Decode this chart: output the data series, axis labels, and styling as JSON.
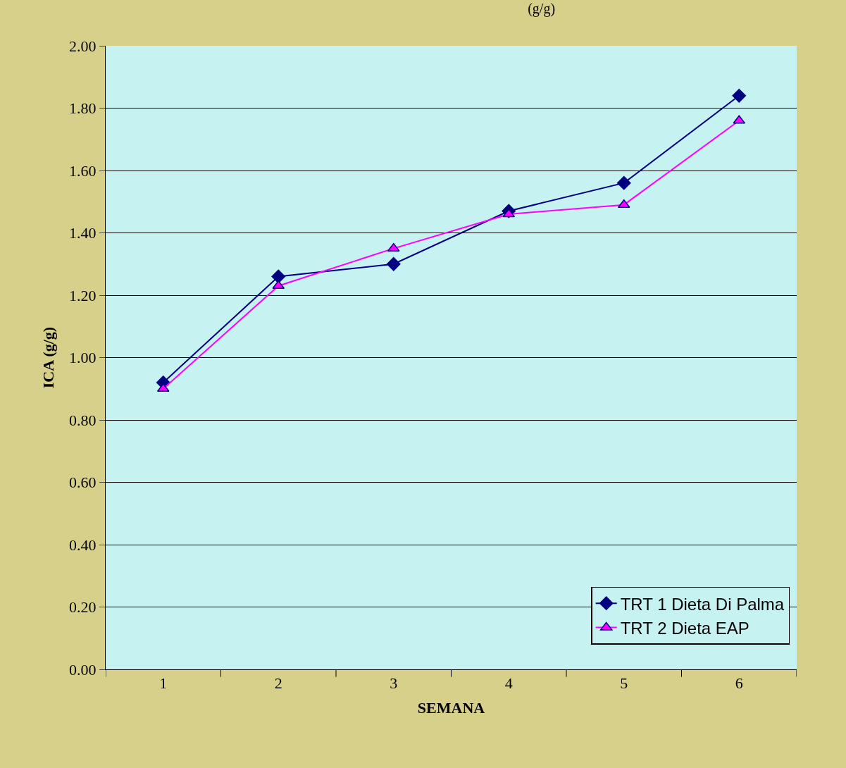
{
  "chart_data": {
    "type": "line",
    "title": "(g/g)",
    "xlabel": "SEMANA",
    "ylabel": "ICA (g/g)",
    "categories": [
      "1",
      "2",
      "3",
      "4",
      "5",
      "6"
    ],
    "series": [
      {
        "name": "TRT 1 Dieta Di Palma",
        "color": "#000080",
        "marker": "diamond",
        "values": [
          0.92,
          1.26,
          1.3,
          1.47,
          1.56,
          1.84
        ]
      },
      {
        "name": "TRT 2 Dieta EAP",
        "color": "#ff00ff",
        "marker": "triangle",
        "values": [
          0.9,
          1.23,
          1.35,
          1.46,
          1.49,
          1.76
        ]
      }
    ],
    "ylim": [
      0,
      2
    ],
    "yticks": [
      {
        "value": 0,
        "label": "0.00"
      },
      {
        "value": 0.2,
        "label": "0.20"
      },
      {
        "value": 0.4,
        "label": "0.40"
      },
      {
        "value": 0.6,
        "label": "0.60"
      },
      {
        "value": 0.8,
        "label": "0.80"
      },
      {
        "value": 1.0,
        "label": "1.00"
      },
      {
        "value": 1.2,
        "label": "1.20"
      },
      {
        "value": 1.4,
        "label": "1.40"
      },
      {
        "value": 1.6,
        "label": "1.60"
      },
      {
        "value": 1.8,
        "label": "1.80"
      },
      {
        "value": 2.0,
        "label": "2.00"
      }
    ],
    "grid": "y",
    "legend": "bottom right",
    "line_style": "solid"
  }
}
